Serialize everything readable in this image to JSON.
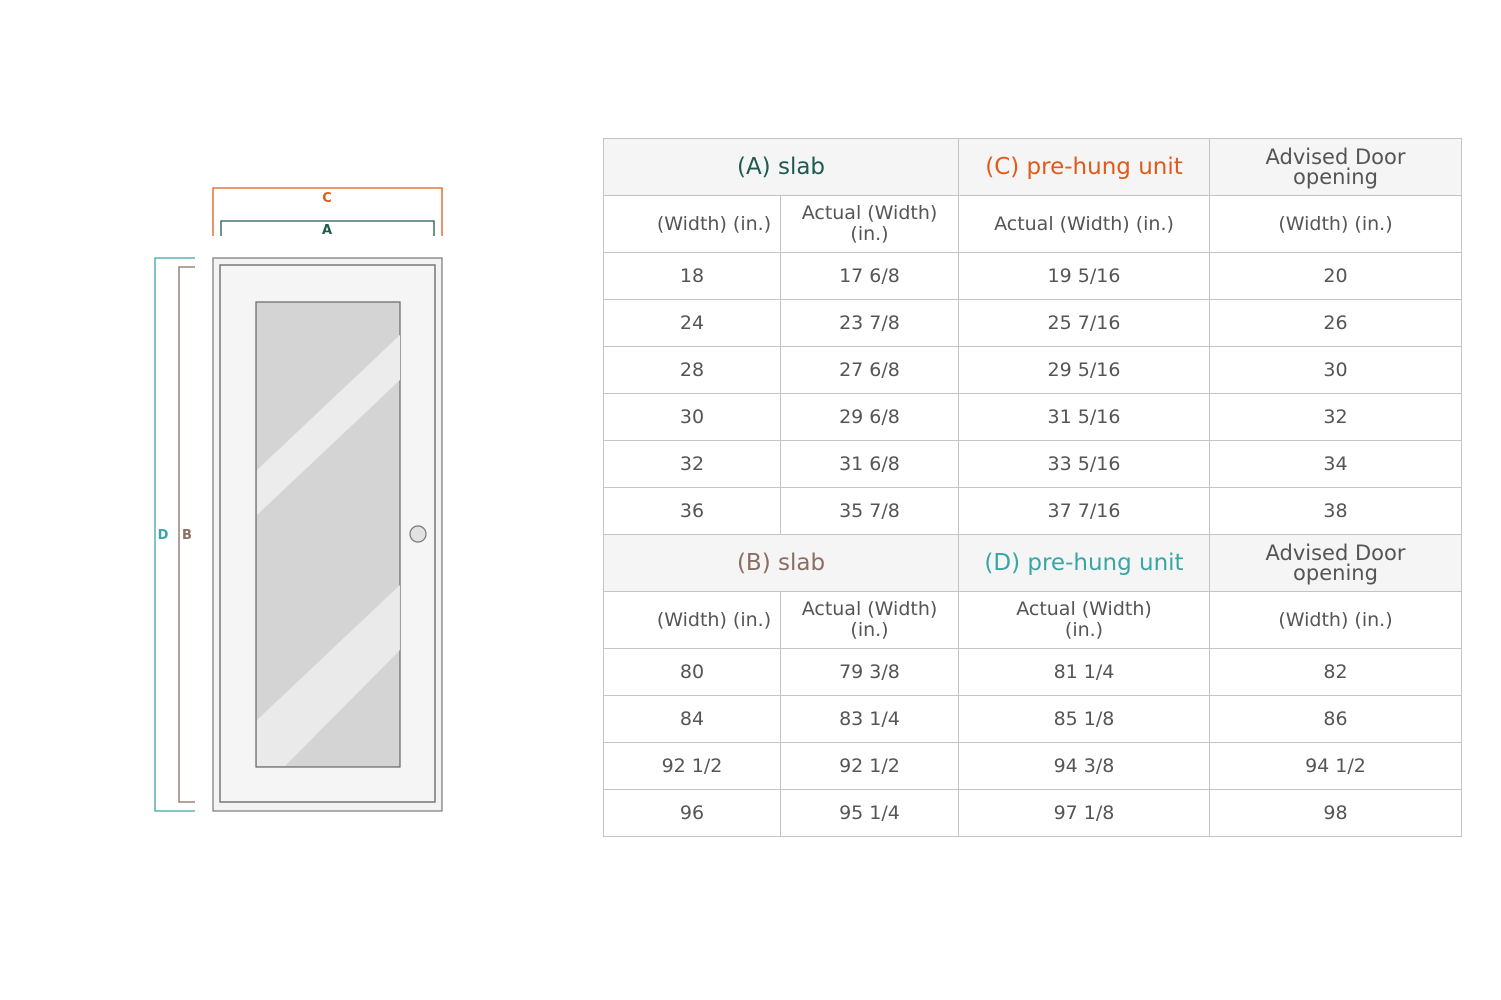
{
  "colors": {
    "A": "#1f5a50",
    "B": "#8a6e62",
    "C": "#e05a1a",
    "D": "#3aa5a5"
  },
  "diagram": {
    "labels": {
      "A": "A",
      "B": "B",
      "C": "C",
      "D": "D"
    }
  },
  "top_table": {
    "headers": [
      "(A) slab",
      "(C) pre-hung unit",
      "Advised Door opening"
    ],
    "subheaders": [
      "(Width) (in.)",
      "Actual (Width) (in.)",
      "Actual (Width) (in.)",
      "(Width) (in.)"
    ],
    "rows": [
      [
        "18",
        "17 6/8",
        "19 5/16",
        "20"
      ],
      [
        "24",
        "23 7/8",
        "25 7/16",
        "26"
      ],
      [
        "28",
        "27 6/8",
        "29 5/16",
        "30"
      ],
      [
        "30",
        "29 6/8",
        "31 5/16",
        "32"
      ],
      [
        "32",
        "31 6/8",
        "33 5/16",
        "34"
      ],
      [
        "36",
        "35 7/8",
        "37 7/16",
        "38"
      ]
    ]
  },
  "bottom_table": {
    "headers": [
      "(B) slab",
      "(D) pre-hung unit",
      "Advised Door opening"
    ],
    "subheaders": [
      "(Width) (in.)",
      "Actual (Width) (in.)",
      "Actual (Width) (in.)",
      "(Width) (in.)"
    ],
    "rows": [
      [
        "80",
        "79 3/8",
        "81 1/4",
        "82"
      ],
      [
        "84",
        "83 1/4",
        "85 1/8",
        "86"
      ],
      [
        "92 1/2",
        "92 1/2",
        "94 3/8",
        "94 1/2"
      ],
      [
        "96",
        "95 1/4",
        "97 1/8",
        "98"
      ]
    ]
  }
}
